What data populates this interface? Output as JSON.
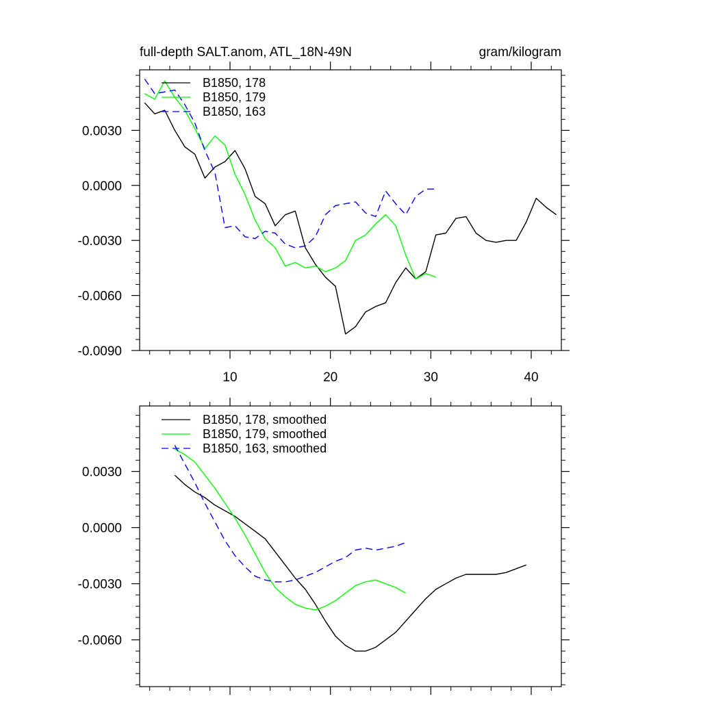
{
  "chart_data": [
    {
      "type": "line",
      "title": "full-depth SALT.anom, ATL_18N-49N",
      "units": "gram/kilogram",
      "xlim": [
        1,
        43
      ],
      "ylim": [
        -0.009,
        0.0063
      ],
      "xticks": [
        10,
        20,
        30,
        40
      ],
      "xtick_labels": [
        "10",
        "20",
        "30",
        "40"
      ],
      "yticks": [
        0.003,
        0.0,
        -0.003,
        -0.006,
        -0.009
      ],
      "ytick_labels": [
        "0.0030",
        "0.0000",
        "-0.0030",
        "-0.0060",
        "-0.0090"
      ],
      "legend_position": "top-left",
      "series": [
        {
          "name": "B1850, 178",
          "color": "#000000",
          "dash": "solid",
          "x": [
            1.5,
            2.5,
            3.5,
            4.5,
            5.5,
            6.5,
            7.5,
            8.5,
            9.5,
            10.5,
            11.5,
            12.5,
            13.5,
            14.5,
            15.5,
            16.5,
            17.5,
            18.5,
            19.5,
            20.5,
            21.5,
            22.5,
            23.5,
            24.5,
            25.5,
            26.5,
            27.5,
            28.5,
            29.5,
            30.5,
            31.5,
            32.5,
            33.5,
            34.5,
            35.5,
            36.5,
            37.5,
            38.5,
            39.5,
            40.5,
            41.5,
            42.5
          ],
          "values": [
            0.0045,
            0.0039,
            0.0041,
            0.003,
            0.0021,
            0.0017,
            0.0004,
            0.001,
            0.0013,
            0.0019,
            0.0009,
            -0.0006,
            -0.001,
            -0.0022,
            -0.0016,
            -0.0014,
            -0.0034,
            -0.0043,
            -0.005,
            -0.0055,
            -0.0081,
            -0.0077,
            -0.0069,
            -0.0066,
            -0.0064,
            -0.0053,
            -0.0045,
            -0.0051,
            -0.0047,
            -0.0027,
            -0.0026,
            -0.0018,
            -0.0017,
            -0.0026,
            -0.003,
            -0.0031,
            -0.003,
            -0.003,
            -0.002,
            -0.0007,
            -0.0012,
            -0.0016
          ]
        },
        {
          "name": "B1850, 179",
          "color": "#00ff00",
          "dash": "solid",
          "x": [
            1.5,
            2.5,
            3.5,
            4.5,
            5.5,
            6.5,
            7.5,
            8.5,
            9.5,
            10.5,
            11.5,
            12.5,
            13.5,
            14.5,
            15.5,
            16.5,
            17.5,
            18.5,
            19.5,
            20.5,
            21.5,
            22.5,
            23.5,
            24.5,
            25.5,
            26.5,
            27.5,
            28.5,
            29.5,
            30.5
          ],
          "values": [
            0.005,
            0.0047,
            0.0057,
            0.0048,
            0.0041,
            0.0031,
            0.002,
            0.0027,
            0.0022,
            0.0006,
            -0.0005,
            -0.0019,
            -0.0029,
            -0.0034,
            -0.0044,
            -0.0042,
            -0.0045,
            -0.0044,
            -0.0047,
            -0.0045,
            -0.0041,
            -0.003,
            -0.0027,
            -0.0021,
            -0.0016,
            -0.0022,
            -0.0038,
            -0.0051,
            -0.0048,
            -0.005
          ]
        },
        {
          "name": "B1850, 163",
          "color": "#0000ff",
          "dash": "dashed",
          "x": [
            1.5,
            2.5,
            3.5,
            4.5,
            5.5,
            6.5,
            7.5,
            8.5,
            9.5,
            10.5,
            11.5,
            12.5,
            13.5,
            14.5,
            15.5,
            16.5,
            17.5,
            18.5,
            19.5,
            20.5,
            21.5,
            22.5,
            23.5,
            24.5,
            25.5,
            26.5,
            27.5,
            28.5,
            29.5,
            30.5
          ],
          "values": [
            0.0058,
            0.005,
            0.0051,
            0.0052,
            0.0044,
            0.0034,
            0.0019,
            0.0007,
            -0.0023,
            -0.0022,
            -0.0028,
            -0.0029,
            -0.0025,
            -0.0026,
            -0.0032,
            -0.0034,
            -0.0033,
            -0.0028,
            -0.0016,
            -0.0011,
            -0.001,
            -0.0009,
            -0.0015,
            -0.0017,
            -0.0003,
            -0.001,
            -0.0016,
            -0.0006,
            -0.0002,
            -0.0002
          ]
        }
      ]
    },
    {
      "type": "line",
      "title": "",
      "ylim": [
        -0.0085,
        0.0065
      ],
      "xticks": [
        10,
        20,
        30,
        40
      ],
      "xtick_labels": [],
      "yticks": [
        0.003,
        0.0,
        -0.003,
        -0.006
      ],
      "ytick_labels": [
        "0.0030",
        "0.0000",
        "-0.0030",
        "-0.0060"
      ],
      "legend_position": "top-left",
      "series": [
        {
          "name": "B1850, 178, smoothed",
          "color": "#000000",
          "dash": "solid",
          "x": [
            4.5,
            5.5,
            6.5,
            7.5,
            8.5,
            9.5,
            10.5,
            11.5,
            12.5,
            13.5,
            14.5,
            15.5,
            16.5,
            17.5,
            18.5,
            19.5,
            20.5,
            21.5,
            22.5,
            23.5,
            24.5,
            25.5,
            26.5,
            27.5,
            28.5,
            29.5,
            30.5,
            31.5,
            32.5,
            33.5,
            34.5,
            35.5,
            36.5,
            37.5,
            38.5,
            39.5
          ],
          "values": [
            0.0028,
            0.0023,
            0.0019,
            0.0016,
            0.0012,
            0.0009,
            0.0006,
            0.0002,
            -0.0002,
            -0.0006,
            -0.0013,
            -0.002,
            -0.0027,
            -0.0033,
            -0.0041,
            -0.005,
            -0.0058,
            -0.0063,
            -0.0066,
            -0.0066,
            -0.0064,
            -0.006,
            -0.0056,
            -0.005,
            -0.0044,
            -0.0038,
            -0.0033,
            -0.003,
            -0.0027,
            -0.0025,
            -0.0025,
            -0.0025,
            -0.0025,
            -0.0024,
            -0.0022,
            -0.002
          ]
        },
        {
          "name": "B1850, 179, smoothed",
          "color": "#00ff00",
          "dash": "solid",
          "x": [
            4.5,
            5.5,
            6.5,
            7.5,
            8.5,
            9.5,
            10.5,
            11.5,
            12.5,
            13.5,
            14.5,
            15.5,
            16.5,
            17.5,
            18.5,
            19.5,
            20.5,
            21.5,
            22.5,
            23.5,
            24.5,
            25.5,
            26.5,
            27.5
          ],
          "values": [
            0.0042,
            0.0039,
            0.0035,
            0.0028,
            0.0021,
            0.0013,
            0.0005,
            -0.0004,
            -0.0014,
            -0.0024,
            -0.0032,
            -0.0037,
            -0.0041,
            -0.0043,
            -0.0044,
            -0.0042,
            -0.0039,
            -0.0035,
            -0.0031,
            -0.0029,
            -0.0028,
            -0.003,
            -0.0032,
            -0.0035
          ]
        },
        {
          "name": "B1850, 163, smoothed",
          "color": "#0000ff",
          "dash": "dashed",
          "x": [
            4.5,
            5.5,
            6.5,
            7.5,
            8.5,
            9.5,
            10.5,
            11.5,
            12.5,
            13.5,
            14.5,
            15.5,
            16.5,
            17.5,
            18.5,
            19.5,
            20.5,
            21.5,
            22.5,
            23.5,
            24.5,
            25.5,
            26.5,
            27.5
          ],
          "values": [
            0.0044,
            0.0034,
            0.0024,
            0.0013,
            0.0003,
            -0.0007,
            -0.0015,
            -0.0021,
            -0.0026,
            -0.0028,
            -0.0029,
            -0.0029,
            -0.0028,
            -0.0026,
            -0.0024,
            -0.0021,
            -0.0018,
            -0.0016,
            -0.0012,
            -0.0011,
            -0.0012,
            -0.0011,
            -0.001,
            -0.0008
          ]
        }
      ]
    }
  ]
}
